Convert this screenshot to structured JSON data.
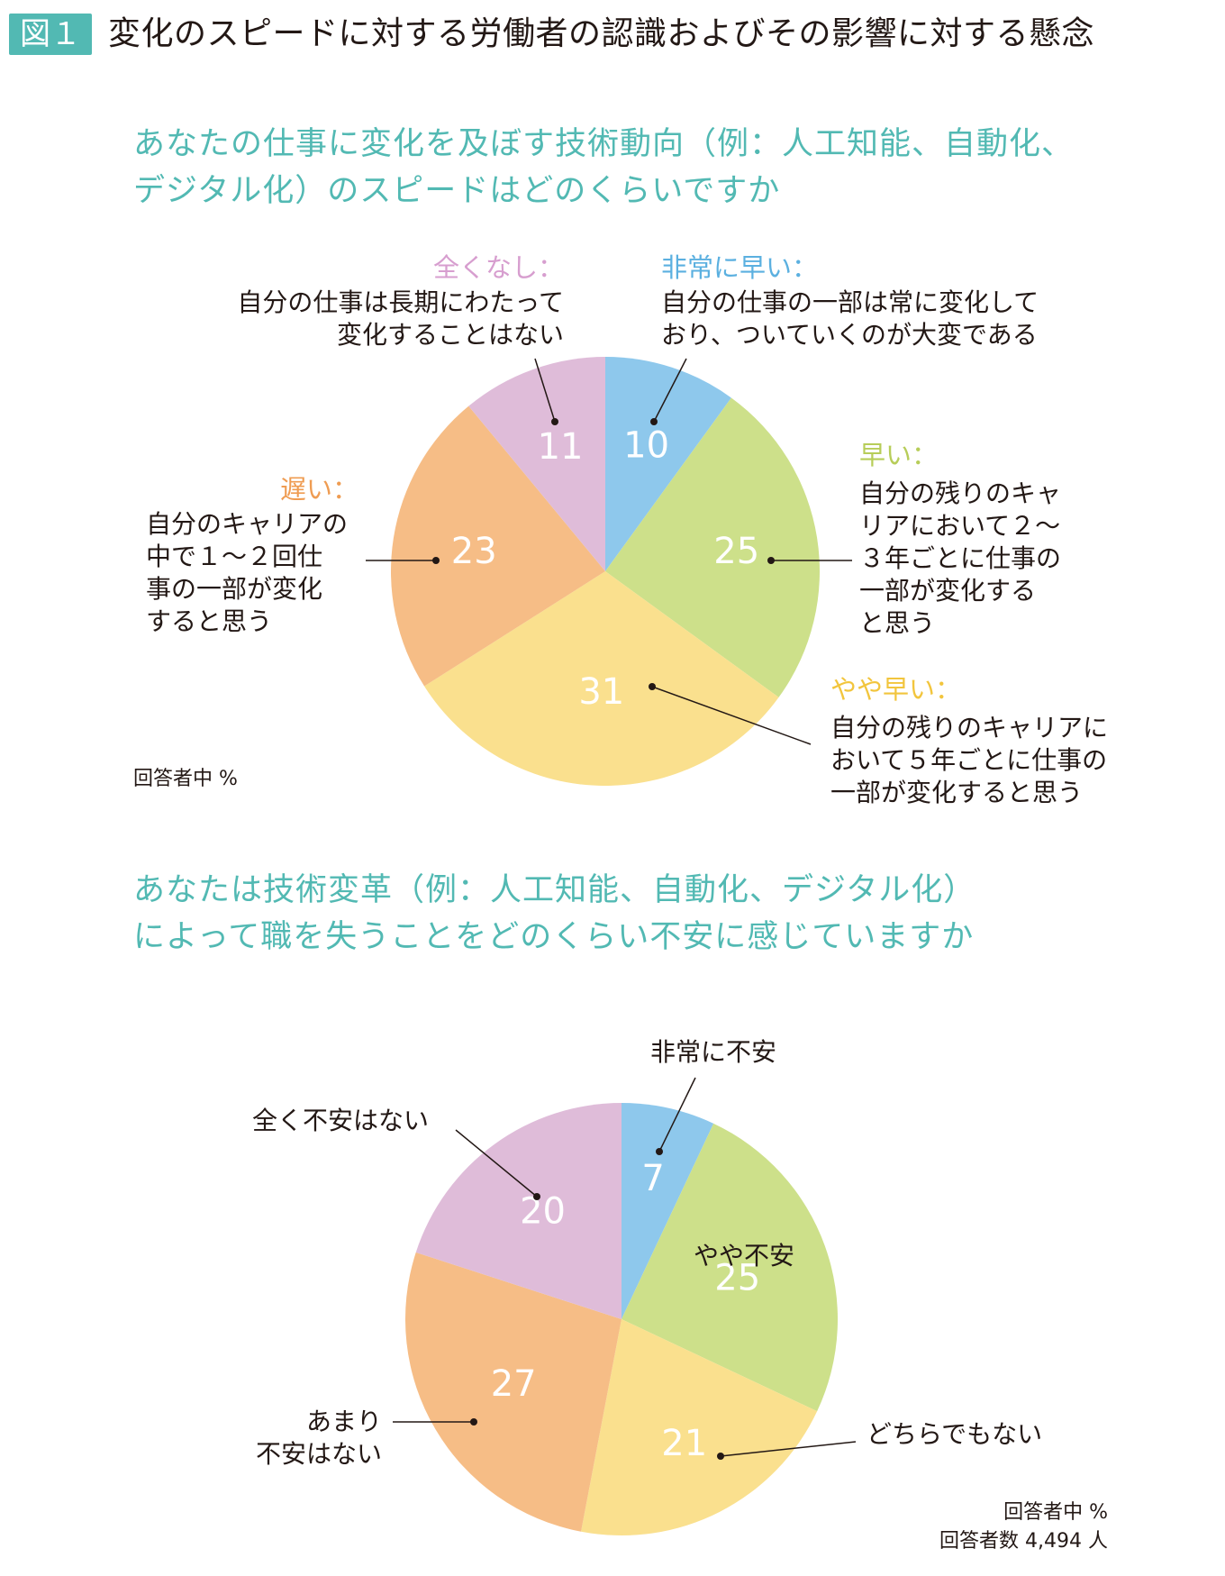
{
  "figure": {
    "badge": "図１",
    "title": "変化のスピードに対する労働者の認識およびその影響に対する懸念"
  },
  "charts": {
    "speed": {
      "question": "あなたの仕事に変化を及ぼす技術動向（例：人工知能、自動化、\nデジタル化）のスピードはどのくらいですか",
      "note": "回答者中 %",
      "slices": [
        {
          "category": "非常に早い：",
          "description": "自分の仕事の一部は常に変化して\nおり、ついていくのが大変である"
        },
        {
          "category": "早い：",
          "description": "自分の残りのキャ\nリアにおいて２～\n３年ごとに仕事の\n一部が変化する\nと思う"
        },
        {
          "category": "やや早い：",
          "description": "自分の残りのキャリアに\nおいて５年ごとに仕事の\n一部が変化すると思う"
        },
        {
          "category": "遅い：",
          "description": "自分のキャリアの\n中で１～２回仕\n事の一部が変化\nすると思う"
        },
        {
          "category": "全くなし：",
          "description": "自分の仕事は長期にわたって\n変化することはない"
        }
      ]
    },
    "anxiety": {
      "question": "あなたは技術変革（例：人工知能、自動化、デジタル化）\nによって職を失うことをどのくらい不安に感じていますか",
      "note_lines": [
        "回答者中 %",
        "回答者数 4,494 人"
      ],
      "slices": [
        {
          "category": "非常に不安"
        },
        {
          "category": "やや不安"
        },
        {
          "category": "どちらでもない"
        },
        {
          "category": "あまり\n不安はない"
        },
        {
          "category": "全く不安はない"
        }
      ]
    }
  },
  "chart_data": [
    {
      "type": "pie",
      "title": "あなたの仕事に変化を及ぼす技術動向（例：人工知能、自動化、デジタル化）のスピードはどのくらいですか",
      "unit": "%",
      "categories": [
        "非常に早い",
        "早い",
        "やや早い",
        "遅い",
        "全くなし"
      ],
      "values": [
        10,
        25,
        31,
        23,
        11
      ],
      "colors": [
        "#8ec8ec",
        "#cde08a",
        "#fae08e",
        "#f6bd86",
        "#dfbcd9"
      ],
      "label_colors": [
        "#5bb0e0",
        "#b7cd59",
        "#f2c53d",
        "#ef9c52",
        "#d79ecf"
      ],
      "start_angle_deg": 0,
      "direction": "clockwise"
    },
    {
      "type": "pie",
      "title": "あなたは技術変革（例：人工知能、自動化、デジタル化）によって職を失うことをどのくらい不安に感じていますか",
      "unit": "%",
      "categories": [
        "非常に不安",
        "やや不安",
        "どちらでもない",
        "あまり不安はない",
        "全く不安はない"
      ],
      "values": [
        7,
        25,
        21,
        27,
        20
      ],
      "colors": [
        "#8ec8ec",
        "#cde08a",
        "#fae08e",
        "#f6bd86",
        "#dfbcd9"
      ],
      "start_angle_deg": 0,
      "direction": "clockwise"
    }
  ]
}
